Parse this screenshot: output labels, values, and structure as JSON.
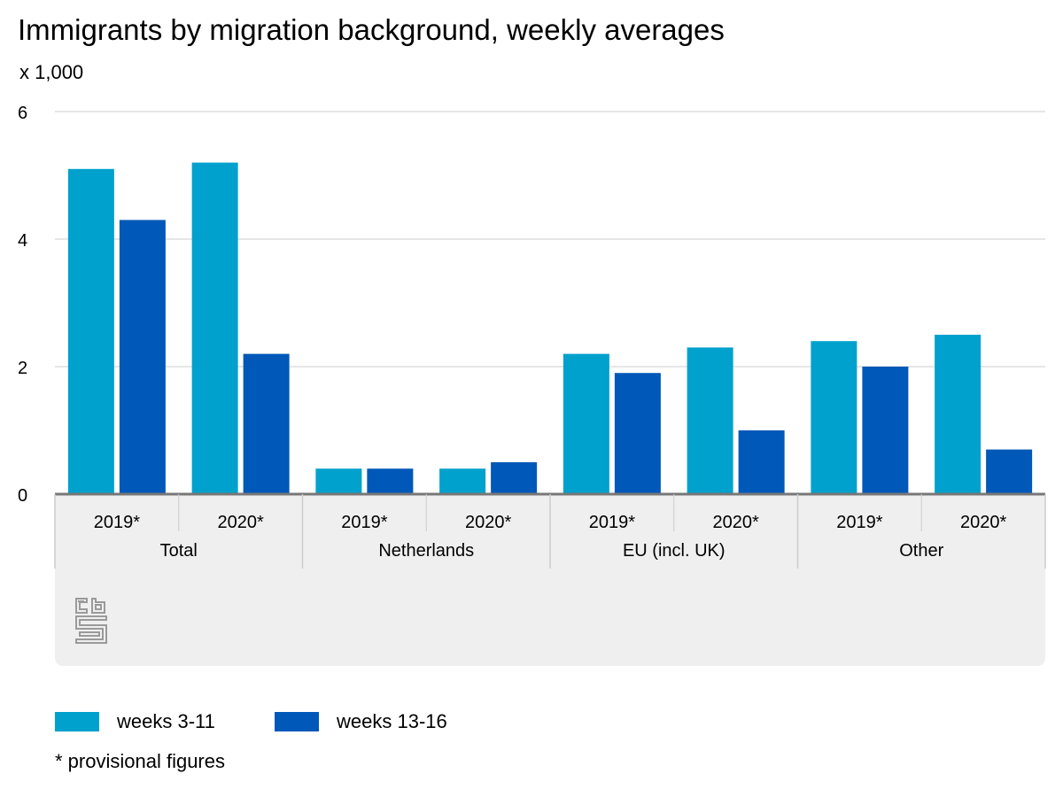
{
  "header": {
    "title": "Immigrants by migration background, weekly averages",
    "unit": "x 1,000"
  },
  "chart_data": {
    "type": "bar",
    "title": "Immigrants by migration background, weekly averages",
    "ylabel": "x 1,000",
    "ylim": [
      0,
      6
    ],
    "yticks": [
      0,
      2,
      4,
      6
    ],
    "grid": true,
    "legend_position": "bottom",
    "groups": [
      "Total",
      "Netherlands",
      "EU (incl. UK)",
      "Other"
    ],
    "categories": [
      "2019*",
      "2020*",
      "2019*",
      "2020*",
      "2019*",
      "2020*",
      "2019*",
      "2020*"
    ],
    "series": [
      {
        "name": "weeks 3-11",
        "color": "#00a1cd",
        "values": [
          5.1,
          5.2,
          0.4,
          0.4,
          2.2,
          2.3,
          2.4,
          2.5
        ]
      },
      {
        "name": "weeks 13-16",
        "color": "#0058b8",
        "values": [
          4.3,
          2.2,
          0.4,
          0.5,
          1.9,
          1.0,
          2.0,
          0.7
        ]
      }
    ]
  },
  "legend": {
    "items": [
      {
        "label": "weeks 3-11",
        "color": "#00a1cd"
      },
      {
        "label": "weeks 13-16",
        "color": "#0058b8"
      }
    ]
  },
  "footnote": "* provisional figures",
  "logo": {
    "icon": "cbs-logo-icon",
    "text": "cbs"
  }
}
